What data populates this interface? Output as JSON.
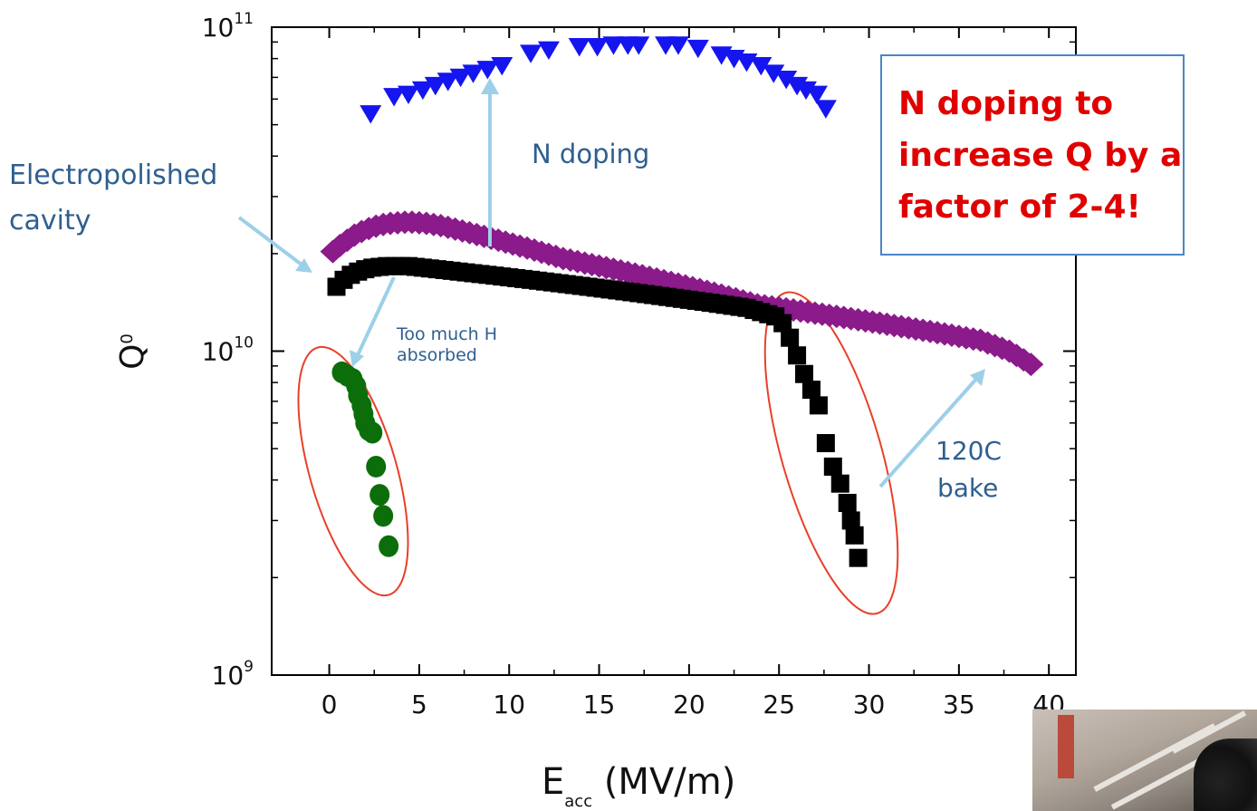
{
  "chart_data": {
    "type": "scatter",
    "xlabel": "E",
    "xlabel_sub": "acc",
    "xlabel_unit": " (MV/m)",
    "ylabel": "Q",
    "ylabel_sub": "0",
    "xlim": [
      -3.2,
      41.5
    ],
    "ylim": [
      1000000000.0,
      100000000000.0
    ],
    "yscale": "log",
    "x_ticks": [
      0,
      5,
      10,
      15,
      20,
      25,
      30,
      35,
      40
    ],
    "x_tick_labels": [
      "0",
      "5",
      "10",
      "15",
      "20",
      "25",
      "30",
      "35",
      "40"
    ],
    "y_ticks": [
      1000000000.0,
      10000000000.0,
      100000000000.0
    ],
    "y_tick_labels": [
      {
        "base": "10",
        "exp": "9"
      },
      {
        "base": "10",
        "exp": "10"
      },
      {
        "base": "10",
        "exp": "11"
      }
    ],
    "series": [
      {
        "marker": "triangle-down",
        "color": "#1515f0",
        "x": [
          2.3,
          3.6,
          4.4,
          5.2,
          5.9,
          6.6,
          7.3,
          8.0,
          8.8,
          9.6,
          11.2,
          12.2,
          13.9,
          14.9,
          15.8,
          16.6,
          17.2,
          18.7,
          19.4,
          20.5,
          21.8,
          22.5,
          23.2,
          24.0,
          24.7,
          25.4,
          26.0,
          26.5,
          27.1,
          27.6
        ],
        "y": [
          54000000000.0,
          61000000000.0,
          62000000000.0,
          64000000000.0,
          66000000000.0,
          68000000000.0,
          70000000000.0,
          72000000000.0,
          74000000000.0,
          76000000000.0,
          83000000000.0,
          85000000000.0,
          87000000000.0,
          87000000000.0,
          88000000000.0,
          88000000000.0,
          88000000000.0,
          88000000000.0,
          88000000000.0,
          86000000000.0,
          82000000000.0,
          80000000000.0,
          78000000000.0,
          76000000000.0,
          72000000000.0,
          69000000000.0,
          66000000000.0,
          64000000000.0,
          62000000000.0,
          56000000000.0
        ]
      },
      {
        "marker": "diamond",
        "color": "#8b1a8b",
        "x": [
          0.2,
          0.6,
          1.0,
          1.4,
          1.8,
          2.2,
          2.6,
          3.0,
          3.4,
          3.8,
          4.2,
          4.6,
          5.0,
          5.4,
          5.8,
          6.2,
          6.6,
          7.0,
          7.4,
          7.8,
          8.2,
          8.6,
          9.0,
          9.4,
          9.8,
          10.2,
          10.6,
          11.0,
          11.4,
          11.8,
          12.2,
          12.6,
          13.0,
          13.4,
          13.8,
          14.2,
          14.6,
          15.0,
          15.4,
          15.8,
          16.2,
          16.6,
          17.0,
          17.4,
          17.8,
          18.2,
          18.6,
          19.0,
          19.4,
          19.8,
          20.2,
          20.6,
          21.0,
          21.4,
          21.8,
          22.2,
          22.6,
          23.0,
          23.4,
          23.8,
          24.2,
          24.6,
          25.0,
          25.4,
          25.8,
          26.2,
          26.6,
          27.0,
          27.4,
          27.8,
          28.2,
          28.6,
          29.0,
          29.4,
          29.8,
          30.2,
          30.6,
          31.0,
          31.4,
          31.8,
          32.2,
          32.6,
          33.0,
          33.4,
          33.8,
          34.2,
          34.6,
          35.0,
          35.4,
          35.8,
          36.2,
          36.6,
          37.0,
          37.4,
          37.8,
          38.2,
          38.6,
          39.0
        ],
        "y": [
          20300000000.0,
          21200000000.0,
          22000000000.0,
          22800000000.0,
          23400000000.0,
          23900000000.0,
          24300000000.0,
          24600000000.0,
          24800000000.0,
          24900000000.0,
          25000000000.0,
          25000000000.0,
          24900000000.0,
          24800000000.0,
          24600000000.0,
          24400000000.0,
          24100000000.0,
          23800000000.0,
          23500000000.0,
          23200000000.0,
          22900000000.0,
          22600000000.0,
          22300000000.0,
          22000000000.0,
          21700000000.0,
          21400000000.0,
          21100000000.0,
          20800000000.0,
          20500000000.0,
          20200000000.0,
          19900000000.0,
          19600000000.0,
          19300000000.0,
          19100000000.0,
          18900000000.0,
          18700000000.0,
          18500000000.0,
          18300000000.0,
          18100000000.0,
          17900000000.0,
          17700000000.0,
          17500000000.0,
          17300000000.0,
          17100000000.0,
          16900000000.0,
          16700000000.0,
          16500000000.0,
          16300000000.0,
          16100000000.0,
          15900000000.0,
          15700000000.0,
          15500000000.0,
          15300000000.0,
          15100000000.0,
          14900000000.0,
          14700000000.0,
          14500000000.0,
          14300000000.0,
          14100000000.0,
          13900000000.0,
          13800000000.0,
          13700000000.0,
          13600000000.0,
          13500000000.0,
          13400000000.0,
          13300000000.0,
          13200000000.0,
          13100000000.0,
          13000000000.0,
          12900000000.0,
          12800000000.0,
          12700000000.0,
          12600000000.0,
          12500000000.0,
          12400000000.0,
          12300000000.0,
          12200000000.0,
          12100000000.0,
          12000000000.0,
          11900000000.0,
          11800000000.0,
          11700000000.0,
          11600000000.0,
          11500000000.0,
          11400000000.0,
          11300000000.0,
          11200000000.0,
          11100000000.0,
          11000000000.0,
          10900000000.0,
          10800000000.0,
          10600000000.0,
          10400000000.0,
          10200000000.0,
          10000000000.0,
          9700000000.0,
          9400000000.0,
          9100000000.0
        ]
      },
      {
        "marker": "square",
        "color": "#000000",
        "x": [
          0.4,
          0.8,
          1.2,
          1.6,
          2.0,
          2.4,
          2.8,
          3.2,
          3.6,
          4.0,
          4.4,
          4.8,
          5.2,
          5.6,
          6.0,
          6.4,
          6.8,
          7.2,
          7.6,
          8.0,
          8.4,
          8.8,
          9.2,
          9.6,
          10.0,
          10.4,
          10.8,
          11.2,
          11.6,
          12.0,
          12.4,
          12.8,
          13.2,
          13.6,
          14.0,
          14.4,
          14.8,
          15.2,
          15.6,
          16.0,
          16.4,
          16.8,
          17.2,
          17.6,
          18.0,
          18.4,
          18.8,
          19.2,
          19.6,
          20.0,
          20.4,
          20.8,
          21.2,
          21.6,
          22.0,
          22.4,
          22.8,
          23.2,
          23.6,
          24.0,
          24.4,
          24.8,
          25.2,
          25.6,
          26.0,
          26.4,
          26.8,
          27.2,
          27.6,
          28.0,
          28.4,
          28.8,
          29.0,
          29.2,
          29.4
        ],
        "y": [
          15800000000.0,
          16600000000.0,
          17200000000.0,
          17600000000.0,
          17900000000.0,
          18100000000.0,
          18200000000.0,
          18300000000.0,
          18300000000.0,
          18300000000.0,
          18300000000.0,
          18200000000.0,
          18100000000.0,
          18000000000.0,
          17900000000.0,
          17800000000.0,
          17700000000.0,
          17600000000.0,
          17500000000.0,
          17400000000.0,
          17300000000.0,
          17200000000.0,
          17100000000.0,
          17000000000.0,
          16900000000.0,
          16800000000.0,
          16700000000.0,
          16600000000.0,
          16500000000.0,
          16400000000.0,
          16300000000.0,
          16200000000.0,
          16100000000.0,
          16000000000.0,
          15900000000.0,
          15800000000.0,
          15700000000.0,
          15600000000.0,
          15500000000.0,
          15400000000.0,
          15300000000.0,
          15200000000.0,
          15100000000.0,
          15000000000.0,
          14900000000.0,
          14800000000.0,
          14700000000.0,
          14600000000.0,
          14500000000.0,
          14400000000.0,
          14300000000.0,
          14200000000.0,
          14100000000.0,
          14000000000.0,
          13900000000.0,
          13800000000.0,
          13700000000.0,
          13600000000.0,
          13400000000.0,
          13200000000.0,
          13000000000.0,
          12800000000.0,
          12200000000.0,
          11000000000.0,
          9700000000.0,
          8500000000.0,
          7600000000.0,
          6800000000.0,
          5200000000.0,
          4400000000.0,
          3900000000.0,
          3400000000.0,
          3000000000.0,
          2700000000.0,
          2300000000.0
        ]
      },
      {
        "marker": "circle",
        "color": "#0b6e0b",
        "x": [
          0.7,
          1.0,
          1.3,
          1.5,
          1.6,
          1.8,
          1.9,
          2.0,
          2.2,
          2.4,
          2.6,
          2.8,
          3.0,
          3.3
        ],
        "y": [
          8600000000.0,
          8400000000.0,
          8200000000.0,
          7800000000.0,
          7300000000.0,
          6800000000.0,
          6400000000.0,
          6000000000.0,
          5700000000.0,
          5600000000.0,
          4400000000.0,
          3600000000.0,
          3100000000.0,
          2500000000.0
        ]
      }
    ]
  },
  "annotations": {
    "n_doping": "N doping",
    "electropolished_line1": "Electropolished",
    "electropolished_line2": "cavity",
    "too_much_h_line1": "Too much H",
    "too_much_h_line2": "absorbed",
    "bake_line1": "120C",
    "bake_line2": "bake",
    "headline": "N doping to\nincrease Q by a\nfactor of 2-4!"
  },
  "colors": {
    "arrow": "#9dd0e8",
    "ellipse": "#e8402a",
    "annotation_text": "#2f5f8f",
    "headline_text": "#e00000",
    "headline_border": "#4a86c5"
  }
}
